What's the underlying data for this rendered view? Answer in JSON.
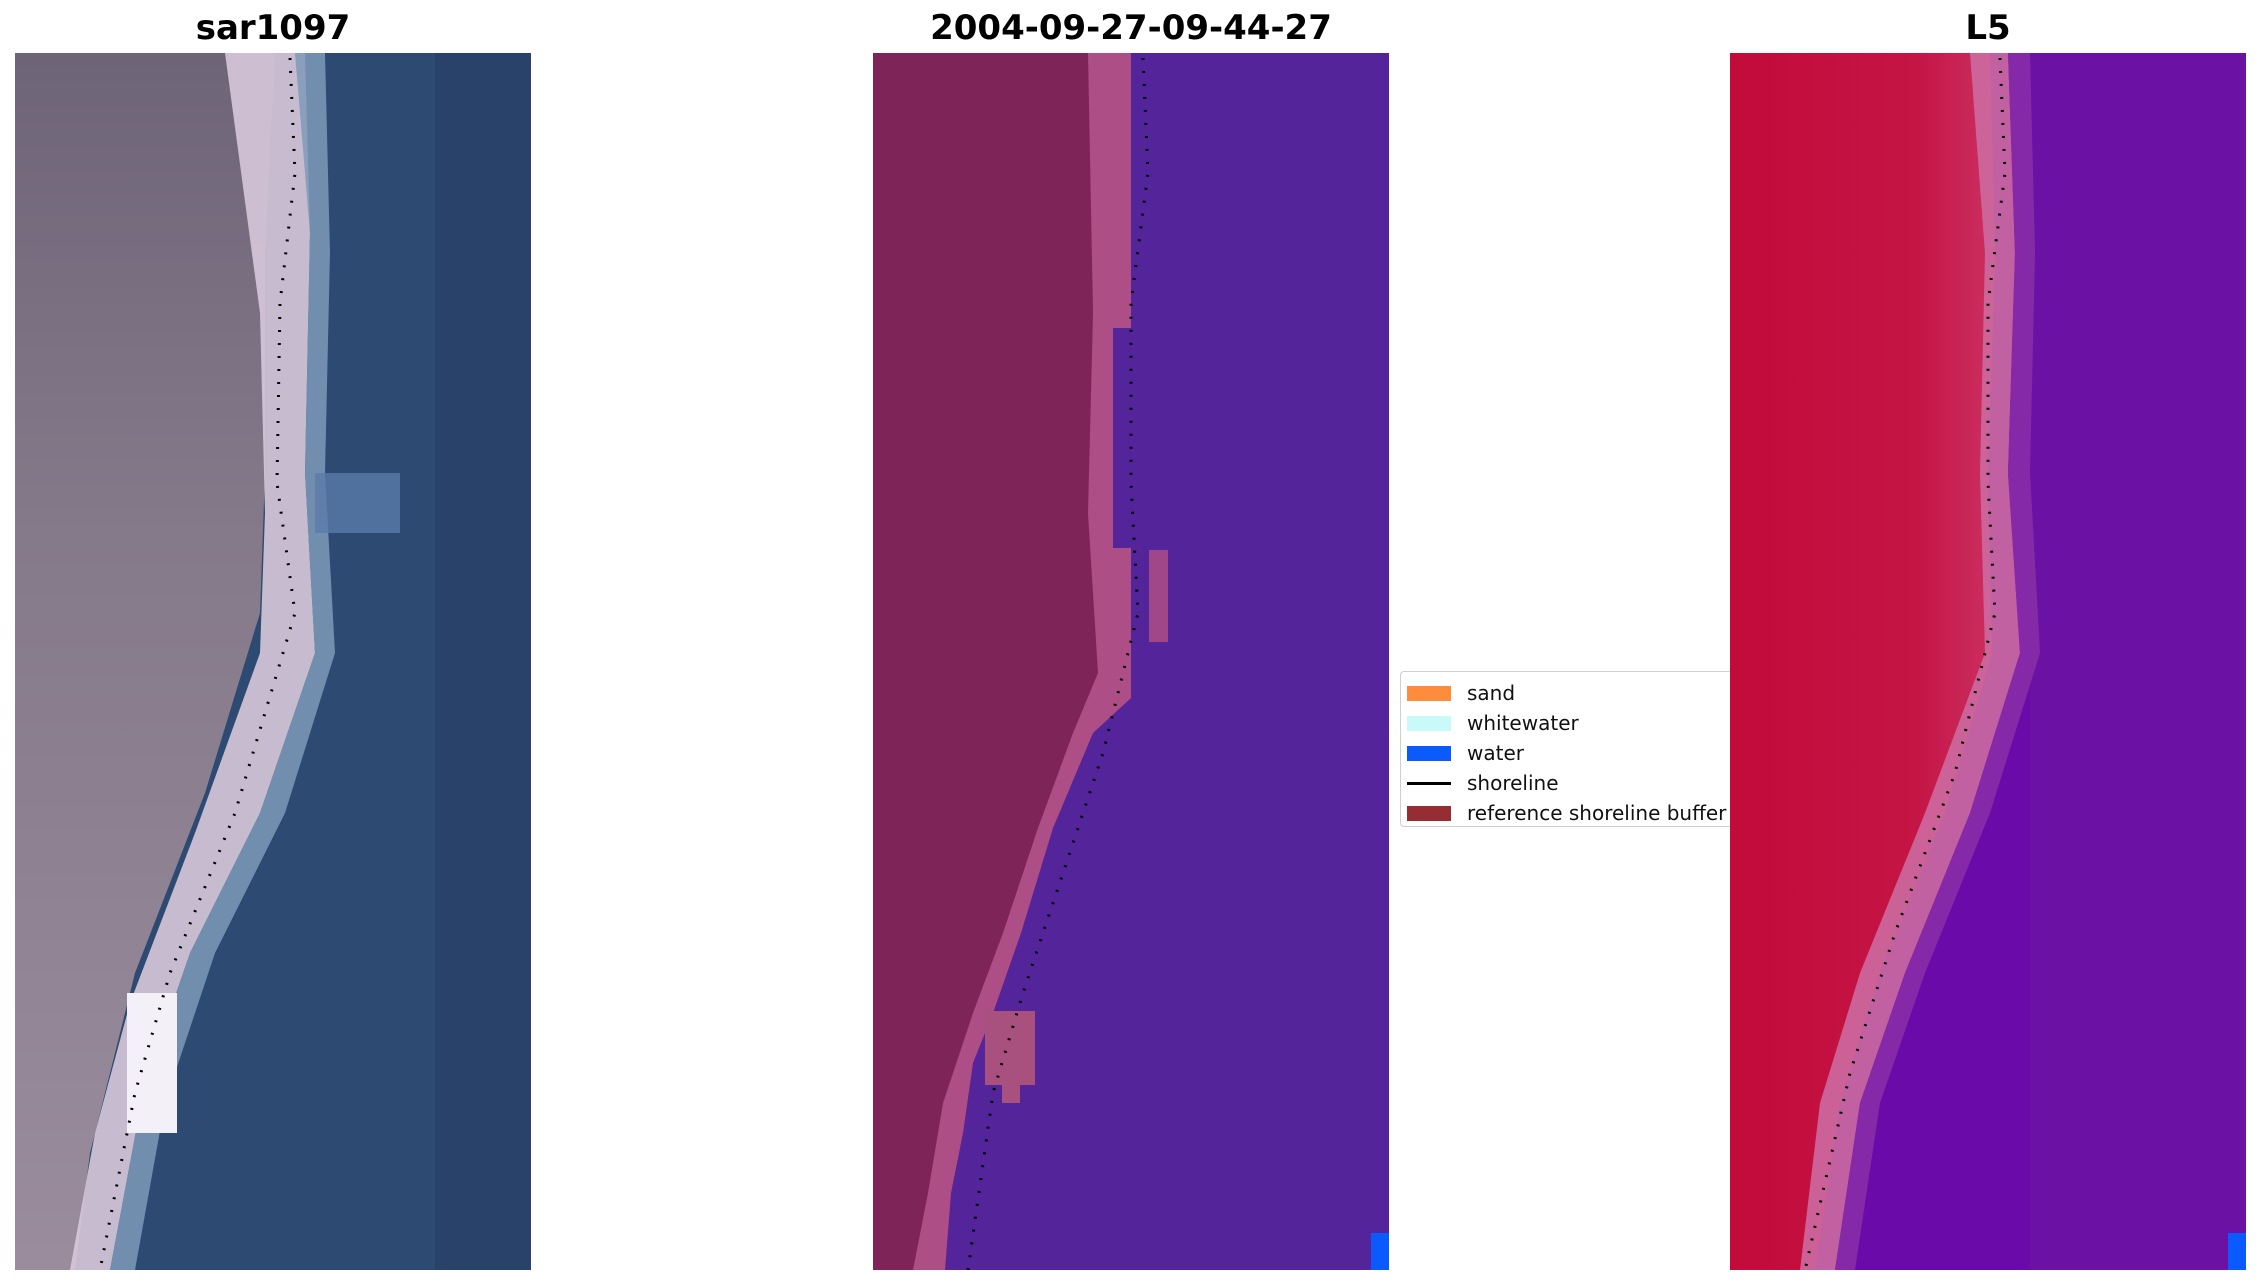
{
  "panels": [
    {
      "title": "sar1097"
    },
    {
      "title": "2004-09-27-09-44-27"
    },
    {
      "title": "L5"
    }
  ],
  "legend": {
    "items": [
      {
        "label": "sand",
        "kind": "patch",
        "color": "#ff8c3c"
      },
      {
        "label": "whitewater",
        "kind": "patch",
        "color": "#c8fafa"
      },
      {
        "label": "water",
        "kind": "patch",
        "color": "#0a5aff"
      },
      {
        "label": "shoreline",
        "kind": "line",
        "color": "#000000"
      },
      {
        "label": "reference shoreline buffer",
        "kind": "patch",
        "color": "#952d33"
      }
    ]
  },
  "colors": {
    "rgb_land": "#7a6e82",
    "rgb_sand": "#dcd0e0",
    "rgb_water": "#2c4a72",
    "class_land": "#7f2459",
    "class_sand_band": "#ad4e86",
    "class_water": "#54249a",
    "class_water_patch": "#0a5aff",
    "index_land": "#c20b3a",
    "index_mid": "#ca3a70",
    "index_water": "#6a0aa8",
    "shoreline_dots": "#000000"
  }
}
